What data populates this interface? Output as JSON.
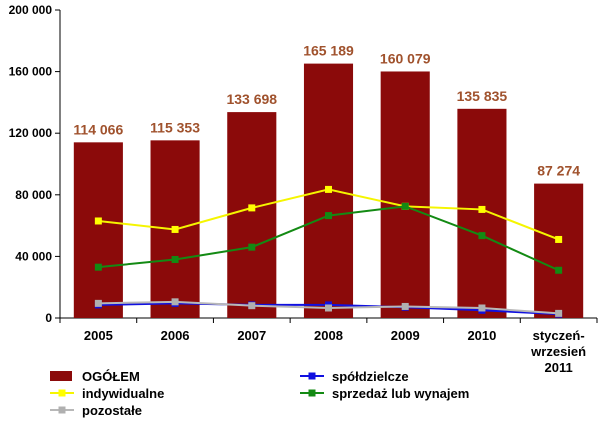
{
  "chart_data": {
    "type": "bar",
    "categories": [
      [
        "2005"
      ],
      [
        "2006"
      ],
      [
        "2007"
      ],
      [
        "2008"
      ],
      [
        "2009"
      ],
      [
        "2010"
      ],
      [
        "styczeń-",
        "wrzesień",
        "2011"
      ]
    ],
    "bar_series": {
      "name": "OGÓŁEM",
      "values": [
        114066,
        115353,
        133698,
        165189,
        160079,
        135835,
        87274
      ],
      "labels": [
        "114 066",
        "115 353",
        "133 698",
        "165 189",
        "160 079",
        "135 835",
        "87 274"
      ],
      "color": "#8B0A0A",
      "label_color": "#A0522D"
    },
    "line_series": [
      {
        "name": "indywidualne",
        "values": [
          63000,
          57500,
          71500,
          83500,
          72500,
          70500,
          51000
        ],
        "color": "#F5F500",
        "marker_color": "#FFFF00"
      },
      {
        "name": "sprzedaż lub wynajem",
        "values": [
          33000,
          38000,
          46000,
          66500,
          72500,
          53500,
          31000
        ],
        "color": "#138A13",
        "marker_color": "#138A13"
      },
      {
        "name": "spółdzielcze",
        "values": [
          8500,
          9500,
          8500,
          8500,
          7000,
          5000,
          2500
        ],
        "color": "#1010E0",
        "marker_color": "#1010E0"
      },
      {
        "name": "pozostałe",
        "values": [
          9500,
          10500,
          8000,
          6500,
          7500,
          6500,
          3000
        ],
        "color": "#B8B8B8",
        "marker_color": "#B0B0B0"
      }
    ],
    "ylim": [
      0,
      200000
    ],
    "yticks": [
      0,
      40000,
      80000,
      120000,
      160000,
      200000
    ],
    "ytick_labels": [
      "0",
      "40 000",
      "80 000",
      "120 000",
      "160 000",
      "200 000"
    ],
    "grid": false,
    "legend": {
      "placement": "bottom",
      "items": [
        {
          "name": "OGÓŁEM",
          "kind": "bar"
        },
        {
          "name": "spółdzielcze",
          "kind": "line"
        },
        {
          "name": "indywidualne",
          "kind": "line"
        },
        {
          "name": "sprzedaż lub wynajem",
          "kind": "line"
        },
        {
          "name": "pozostałe",
          "kind": "line"
        }
      ]
    }
  }
}
